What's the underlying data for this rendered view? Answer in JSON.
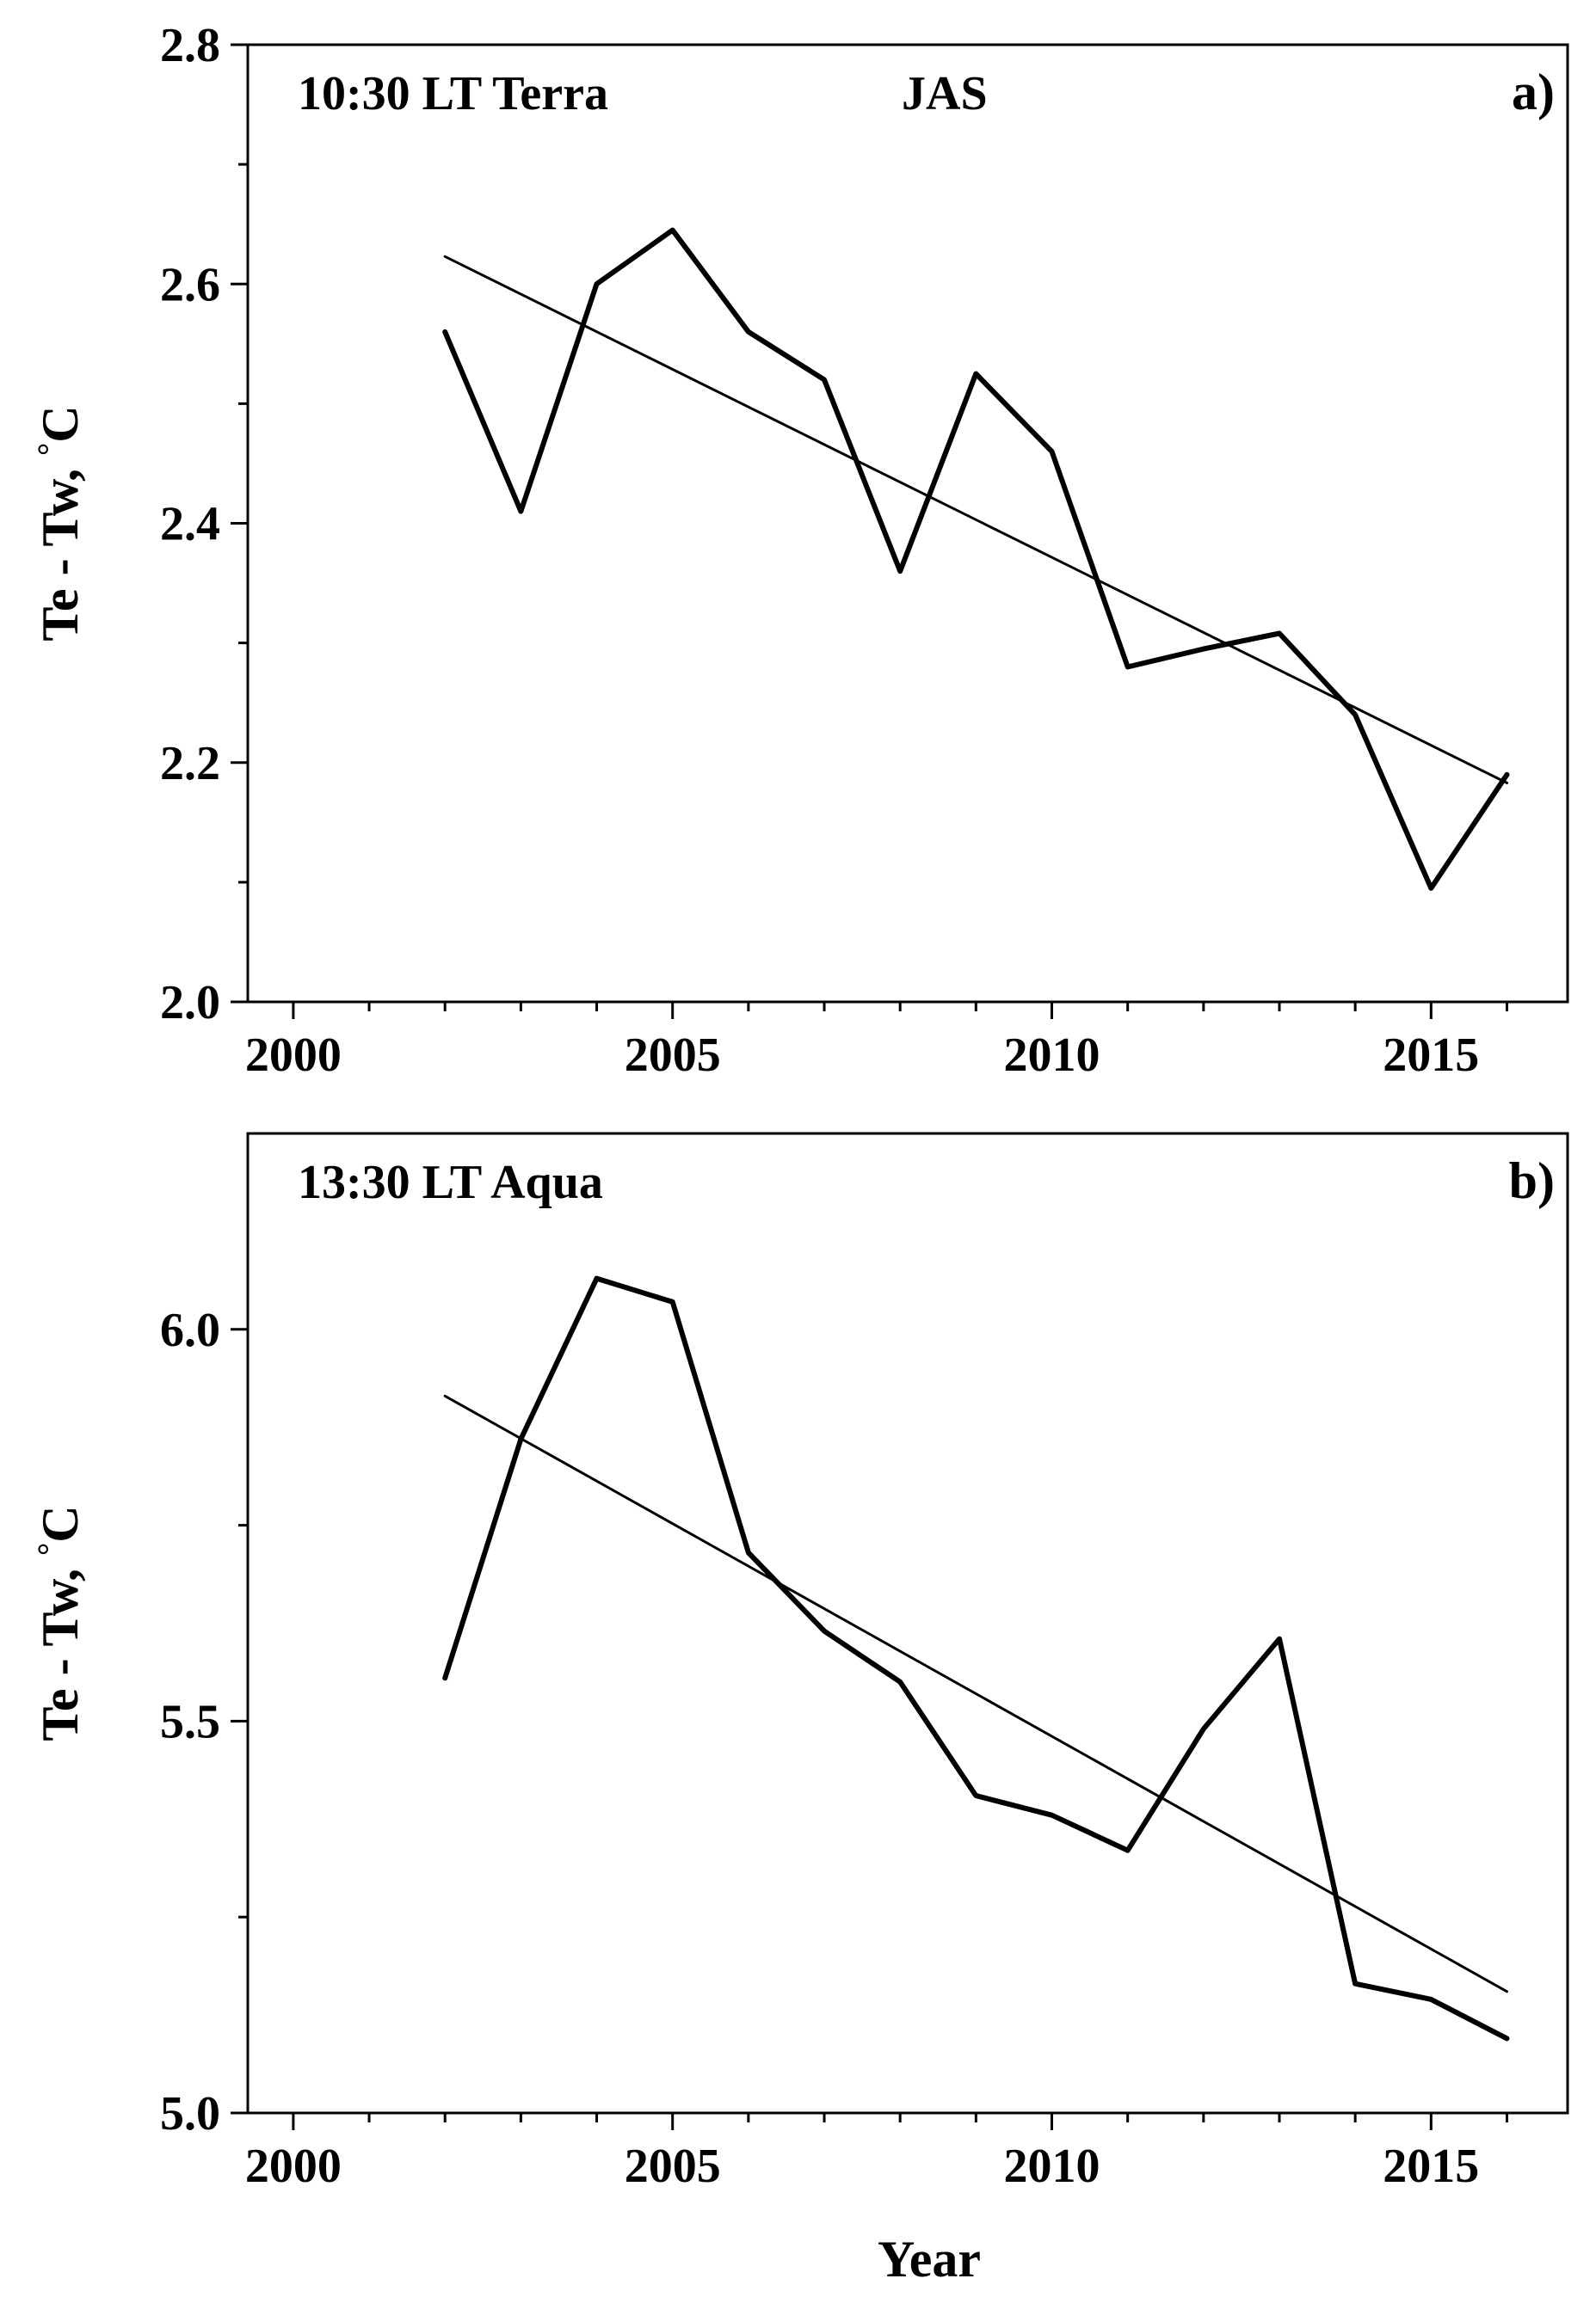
{
  "chart_data": [
    {
      "type": "line",
      "panel_label": "a)",
      "annotation_left": "10:30 LT Terra",
      "annotation_center": "JAS",
      "ylabel": "Te - Tw,",
      "ylabel_unit": "°C",
      "xlabel": "",
      "xlim": [
        1999.4,
        2016.8
      ],
      "ylim": [
        2.0,
        2.8
      ],
      "x_ticks": [
        2000,
        2005,
        2010,
        2015
      ],
      "x_tick_labels": [
        "2000",
        "2005",
        "2010",
        "2015"
      ],
      "x_minor_ticks": [
        2001,
        2002,
        2003,
        2004,
        2006,
        2007,
        2008,
        2009,
        2011,
        2012,
        2013,
        2014,
        2016
      ],
      "y_ticks": [
        2.0,
        2.2,
        2.4,
        2.6,
        2.8
      ],
      "y_tick_labels": [
        "2.0",
        "2.2",
        "2.4",
        "2.6",
        "2.8"
      ],
      "y_minor_ticks": [
        2.1,
        2.3,
        2.5,
        2.7
      ],
      "grid": false,
      "series": [
        {
          "name": "Te - Tw",
          "x": [
            2002,
            2003,
            2004,
            2005,
            2006,
            2007,
            2008,
            2009,
            2010,
            2011,
            2012,
            2013,
            2014,
            2015,
            2016
          ],
          "values": [
            2.56,
            2.41,
            2.6,
            2.645,
            2.56,
            2.52,
            2.36,
            2.525,
            2.46,
            2.28,
            2.295,
            2.308,
            2.24,
            2.095,
            2.19
          ]
        },
        {
          "name": "Linear trend",
          "x": [
            2002,
            2016
          ],
          "values": [
            2.623,
            2.183
          ]
        }
      ]
    },
    {
      "type": "line",
      "panel_label": "b)",
      "annotation_left": "13:30 LT  Aqua",
      "annotation_center": "",
      "ylabel": "Te - Tw,",
      "ylabel_unit": "°C",
      "xlabel": "Year",
      "xlim": [
        1999.4,
        2016.8
      ],
      "ylim": [
        5.0,
        6.25
      ],
      "x_ticks": [
        2000,
        2005,
        2010,
        2015
      ],
      "x_tick_labels": [
        "2000",
        "2005",
        "2010",
        "2015"
      ],
      "x_minor_ticks": [
        2001,
        2002,
        2003,
        2004,
        2006,
        2007,
        2008,
        2009,
        2011,
        2012,
        2013,
        2014,
        2016
      ],
      "y_ticks": [
        5.0,
        5.5,
        6.0
      ],
      "y_tick_labels": [
        "5.0",
        "5.5",
        "6.0"
      ],
      "y_minor_ticks": [
        5.25,
        5.75
      ],
      "grid": false,
      "series": [
        {
          "name": "Te - Tw",
          "x": [
            2002,
            2003,
            2004,
            2005,
            2006,
            2007,
            2008,
            2009,
            2010,
            2011,
            2012,
            2013,
            2014,
            2015,
            2016
          ],
          "values": [
            5.555,
            5.86,
            6.065,
            6.035,
            5.715,
            5.615,
            5.55,
            5.405,
            5.38,
            5.335,
            5.49,
            5.605,
            5.165,
            5.145,
            5.095
          ]
        },
        {
          "name": "Linear trend",
          "x": [
            2002,
            2016
          ],
          "values": [
            5.915,
            5.155
          ]
        }
      ]
    }
  ]
}
